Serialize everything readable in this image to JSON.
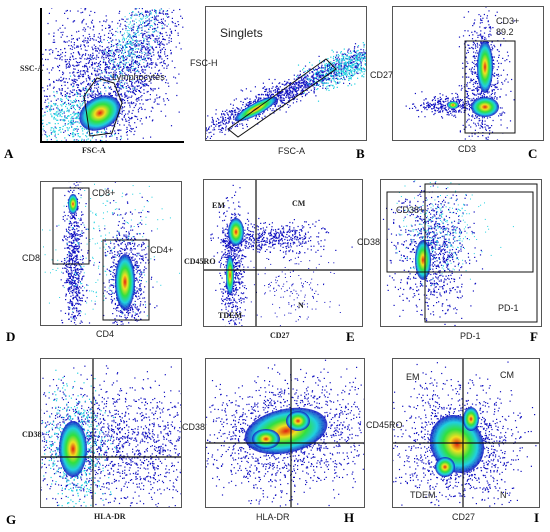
{
  "panels": {
    "A": {
      "letter": "A",
      "xlabel": "FSC-A",
      "ylabel": "SSC-A",
      "gate": "Lymphocytes"
    },
    "B": {
      "letter": "B",
      "xlabel": "FSC-A",
      "ylabel": "FSC-H",
      "gate": "Singlets"
    },
    "C": {
      "letter": "C",
      "xlabel": "CD3",
      "ylabel": "CD27",
      "gate": "CD3+",
      "gate_value": "89.2"
    },
    "D": {
      "letter": "D",
      "xlabel": "CD4",
      "ylabel": "CD8",
      "gate1": "CD8+",
      "gate2": "CD4+"
    },
    "E": {
      "letter": "E",
      "xlabel": "CD27",
      "ylabel": "CD45RO",
      "q_tl": "EM",
      "q_tr": "CM",
      "q_bl": "TDEM",
      "q_br": "N"
    },
    "F": {
      "letter": "F",
      "xlabel": "PD-1",
      "ylabel": "CD38",
      "gate1": "CD38+",
      "gate2": "PD-1"
    },
    "G": {
      "letter": "G",
      "xlabel": "HLA-DR",
      "ylabel": "CD38"
    },
    "H": {
      "letter": "H",
      "xlabel": "HLA-DR",
      "ylabel": "CD38"
    },
    "I": {
      "letter": "I",
      "xlabel": "CD27",
      "ylabel": "CD45RO",
      "q_tl": "EM",
      "q_tr": "CM",
      "q_bl": "TDEM",
      "q_br": "N"
    }
  },
  "colors": {
    "low": "#1010c0",
    "mid": "#20d0e0",
    "midhigh": "#30e040",
    "high": "#f0e020",
    "peak": "#e02010"
  }
}
